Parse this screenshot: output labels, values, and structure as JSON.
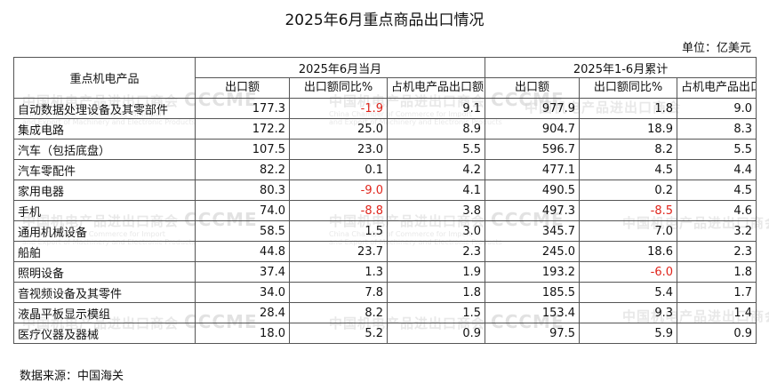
{
  "title": "2025年6月重点商品出口情况",
  "unit": "单位：亿美元",
  "headers": {
    "product": "重点机电产品",
    "period1": "2025年6月当月",
    "period2": "2025年1-6月累计",
    "export_value": "出口额",
    "yoy": "出口额同比%",
    "share": "占机电产品出口额比重%"
  },
  "rows": [
    {
      "name": "自动数据处理设备及其零部件",
      "m_value": "177.3",
      "m_yoy": "-1.9",
      "m_share": "9.1",
      "c_value": "977.9",
      "c_yoy": "1.8",
      "c_share": "9.0"
    },
    {
      "name": "集成电路",
      "m_value": "172.2",
      "m_yoy": "25.0",
      "m_share": "8.9",
      "c_value": "904.7",
      "c_yoy": "18.9",
      "c_share": "8.3"
    },
    {
      "name": "汽车（包括底盘）",
      "m_value": "107.5",
      "m_yoy": "23.0",
      "m_share": "5.5",
      "c_value": "596.7",
      "c_yoy": "8.2",
      "c_share": "5.5"
    },
    {
      "name": "汽车零配件",
      "m_value": "82.2",
      "m_yoy": "0.1",
      "m_share": "4.2",
      "c_value": "477.1",
      "c_yoy": "4.5",
      "c_share": "4.4"
    },
    {
      "name": "家用电器",
      "m_value": "80.3",
      "m_yoy": "-9.0",
      "m_share": "4.1",
      "c_value": "490.5",
      "c_yoy": "0.2",
      "c_share": "4.5"
    },
    {
      "name": "手机",
      "m_value": "74.0",
      "m_yoy": "-8.8",
      "m_share": "3.8",
      "c_value": "497.3",
      "c_yoy": "-8.5",
      "c_share": "4.6"
    },
    {
      "name": "通用机械设备",
      "m_value": "58.5",
      "m_yoy": "1.5",
      "m_share": "3.0",
      "c_value": "345.7",
      "c_yoy": "7.0",
      "c_share": "3.2"
    },
    {
      "name": "船舶",
      "m_value": "44.8",
      "m_yoy": "23.7",
      "m_share": "2.3",
      "c_value": "245.0",
      "c_yoy": "18.6",
      "c_share": "2.3"
    },
    {
      "name": "照明设备",
      "m_value": "37.4",
      "m_yoy": "1.3",
      "m_share": "1.9",
      "c_value": "193.2",
      "c_yoy": "-6.0",
      "c_share": "1.8"
    },
    {
      "name": "音视频设备及其零件",
      "m_value": "34.0",
      "m_yoy": "7.8",
      "m_share": "1.8",
      "c_value": "185.5",
      "c_yoy": "5.4",
      "c_share": "1.7"
    },
    {
      "name": "液晶平板显示模组",
      "m_value": "28.4",
      "m_yoy": "8.2",
      "m_share": "1.5",
      "c_value": "153.4",
      "c_yoy": "9.3",
      "c_share": "1.4"
    },
    {
      "name": "医疗仪器及器械",
      "m_value": "18.0",
      "m_yoy": "5.2",
      "m_share": "0.9",
      "c_value": "97.5",
      "c_yoy": "5.9",
      "c_share": "0.9"
    }
  ],
  "colors": {
    "negative": "#e0251c",
    "watermark": "#d9d9d9"
  },
  "watermark": {
    "cn": "中国机电产品进出口商会",
    "logo": "CCCME",
    "en1": "China Chamber of Commerce for Import",
    "en2": "and Export of Machinery and Electronic Products"
  },
  "source": "数据来源：中国海关"
}
